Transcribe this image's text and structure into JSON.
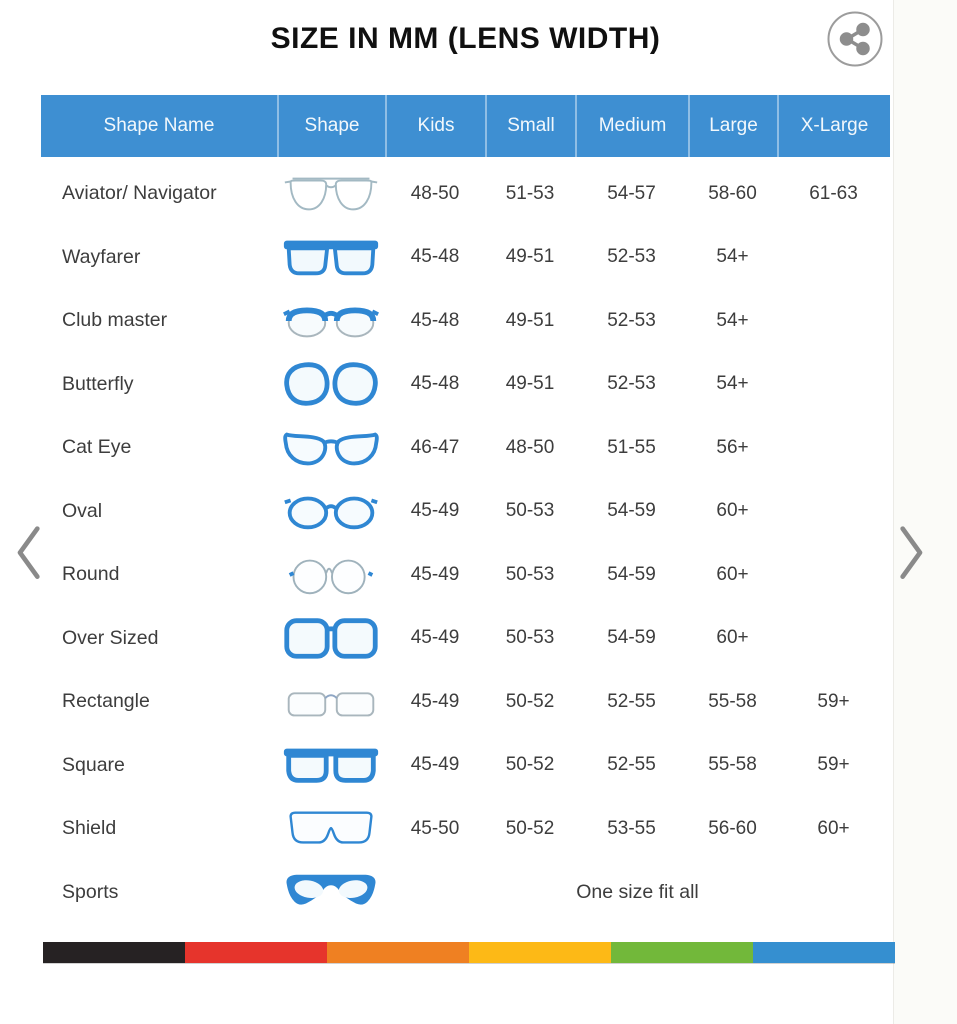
{
  "page": {
    "title": "SIZE IN MM (LENS WIDTH)"
  },
  "colors": {
    "header_bg": "#3e8fd2",
    "header_divider": "#6aaade",
    "frame_blue": "#2f87d3",
    "outline_gray": "#a3b9c3",
    "stripe": [
      "#262223",
      "#e6342c",
      "#ef8022",
      "#fdb916",
      "#72b83a",
      "#358fd0"
    ]
  },
  "table": {
    "columns": [
      "Shape Name",
      "Shape",
      "Kids",
      "Small",
      "Medium",
      "Large",
      "X-Large"
    ],
    "size_keys": [
      "kids",
      "small",
      "medium",
      "large",
      "x-large"
    ],
    "rows": [
      {
        "name": "Aviator/ Navigator",
        "icon": "aviator",
        "sizes": [
          "48-50",
          "51-53",
          "54-57",
          "58-60",
          "61-63"
        ]
      },
      {
        "name": "Wayfarer",
        "icon": "wayfarer",
        "sizes": [
          "45-48",
          "49-51",
          "52-53",
          "54+",
          ""
        ]
      },
      {
        "name": "Club master",
        "icon": "clubmaster",
        "sizes": [
          "45-48",
          "49-51",
          "52-53",
          "54+",
          ""
        ]
      },
      {
        "name": "Butterfly",
        "icon": "butterfly",
        "sizes": [
          "45-48",
          "49-51",
          "52-53",
          "54+",
          ""
        ]
      },
      {
        "name": "Cat Eye",
        "icon": "cateye",
        "sizes": [
          "46-47",
          "48-50",
          "51-55",
          "56+",
          ""
        ]
      },
      {
        "name": "Oval",
        "icon": "oval",
        "sizes": [
          "45-49",
          "50-53",
          "54-59",
          "60+",
          ""
        ]
      },
      {
        "name": "Round",
        "icon": "round",
        "sizes": [
          "45-49",
          "50-53",
          "54-59",
          "60+",
          ""
        ]
      },
      {
        "name": "Over Sized",
        "icon": "oversized",
        "sizes": [
          "45-49",
          "50-53",
          "54-59",
          "60+",
          ""
        ]
      },
      {
        "name": "Rectangle",
        "icon": "rectangle",
        "sizes": [
          "45-49",
          "50-52",
          "52-55",
          "55-58",
          "59+"
        ]
      },
      {
        "name": "Square",
        "icon": "square",
        "sizes": [
          "45-49",
          "50-52",
          "52-55",
          "55-58",
          "59+"
        ]
      },
      {
        "name": "Shield",
        "icon": "shield",
        "sizes": [
          "45-50",
          "50-52",
          "53-55",
          "56-60",
          "60+"
        ]
      },
      {
        "name": "Sports",
        "icon": "sports",
        "span_text": "One size fit all"
      }
    ]
  },
  "chart_data": {
    "type": "table",
    "title": "SIZE IN MM (LENS WIDTH)",
    "columns": [
      "Shape Name",
      "Kids",
      "Small",
      "Medium",
      "Large",
      "X-Large"
    ],
    "rows": [
      [
        "Aviator/ Navigator",
        "48-50",
        "51-53",
        "54-57",
        "58-60",
        "61-63"
      ],
      [
        "Wayfarer",
        "45-48",
        "49-51",
        "52-53",
        "54+",
        ""
      ],
      [
        "Club master",
        "45-48",
        "49-51",
        "52-53",
        "54+",
        ""
      ],
      [
        "Butterfly",
        "45-48",
        "49-51",
        "52-53",
        "54+",
        ""
      ],
      [
        "Cat Eye",
        "46-47",
        "48-50",
        "51-55",
        "56+",
        ""
      ],
      [
        "Oval",
        "45-49",
        "50-53",
        "54-59",
        "60+",
        ""
      ],
      [
        "Round",
        "45-49",
        "50-53",
        "54-59",
        "60+",
        ""
      ],
      [
        "Over Sized",
        "45-49",
        "50-53",
        "54-59",
        "60+",
        ""
      ],
      [
        "Rectangle",
        "45-49",
        "50-52",
        "52-55",
        "55-58",
        "59+"
      ],
      [
        "Square",
        "45-49",
        "50-52",
        "52-55",
        "55-58",
        "59+"
      ],
      [
        "Shield",
        "45-50",
        "50-52",
        "53-55",
        "56-60",
        "60+"
      ],
      [
        "Sports",
        "One size fit all",
        "",
        "",
        "",
        ""
      ]
    ]
  }
}
